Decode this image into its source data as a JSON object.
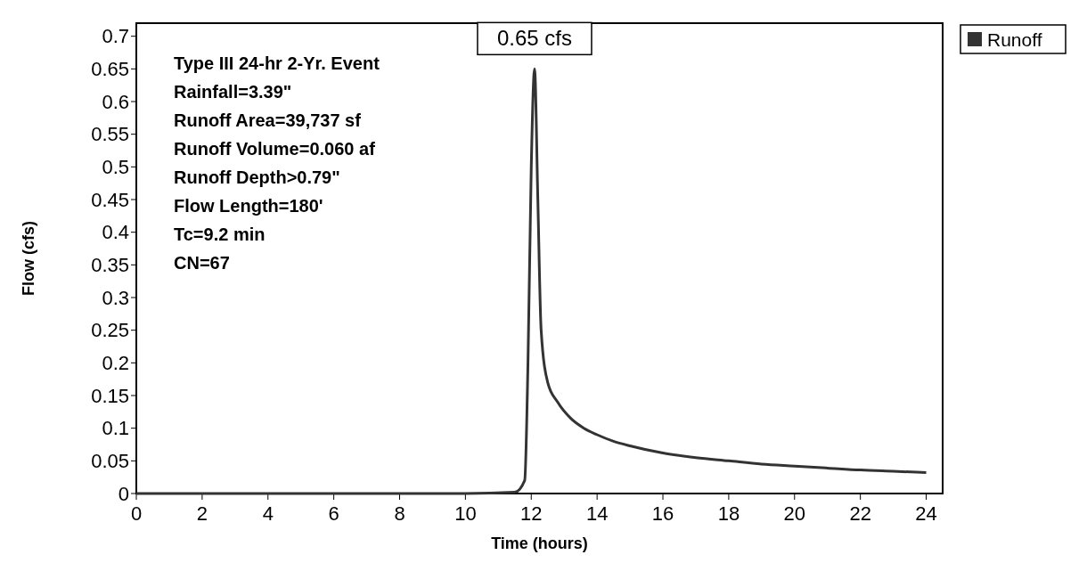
{
  "chart_data": {
    "type": "line",
    "xlabel": "Time  (hours)",
    "ylabel": "Flow  (cfs)",
    "x": [
      0,
      2,
      4,
      6,
      8,
      10,
      11.5,
      11.8,
      11.9,
      12.0,
      12.1,
      12.2,
      12.3,
      12.5,
      12.8,
      13.2,
      13.6,
      14,
      14.5,
      15,
      16,
      17,
      18,
      19,
      20,
      21,
      22,
      23,
      24
    ],
    "series": [
      {
        "name": "Runoff",
        "color": "#333333",
        "values": [
          0,
          0,
          0,
          0,
          0,
          0,
          0.002,
          0.02,
          0.2,
          0.5,
          0.65,
          0.45,
          0.25,
          0.17,
          0.14,
          0.115,
          0.1,
          0.09,
          0.08,
          0.073,
          0.062,
          0.055,
          0.05,
          0.045,
          0.042,
          0.039,
          0.036,
          0.034,
          0.032
        ]
      }
    ],
    "xlim": [
      0,
      24.5
    ],
    "xticks": [
      0,
      2,
      4,
      6,
      8,
      10,
      12,
      14,
      16,
      18,
      20,
      22,
      24
    ],
    "ylim": [
      0,
      0.72
    ],
    "yticks": [
      0,
      0.05,
      0.1,
      0.15,
      0.2,
      0.25,
      0.3,
      0.35,
      0.4,
      0.45,
      0.5,
      0.55,
      0.6,
      0.65,
      0.7
    ],
    "grid": false,
    "legend": "top right",
    "marker": "none",
    "line_style": "solid",
    "annotations": [
      {
        "text": "0.65 cfs",
        "x": 12.1,
        "y": 0.65
      },
      "Type III 24-hr 2-Yr. Event",
      "Rainfall=3.39\"",
      "Runoff Area=39,737 sf",
      "Runoff Volume=0.060 af",
      "Runoff Depth>0.79\"",
      "Flow Length=180'",
      "Tc=9.2 min",
      "CN=67"
    ]
  }
}
